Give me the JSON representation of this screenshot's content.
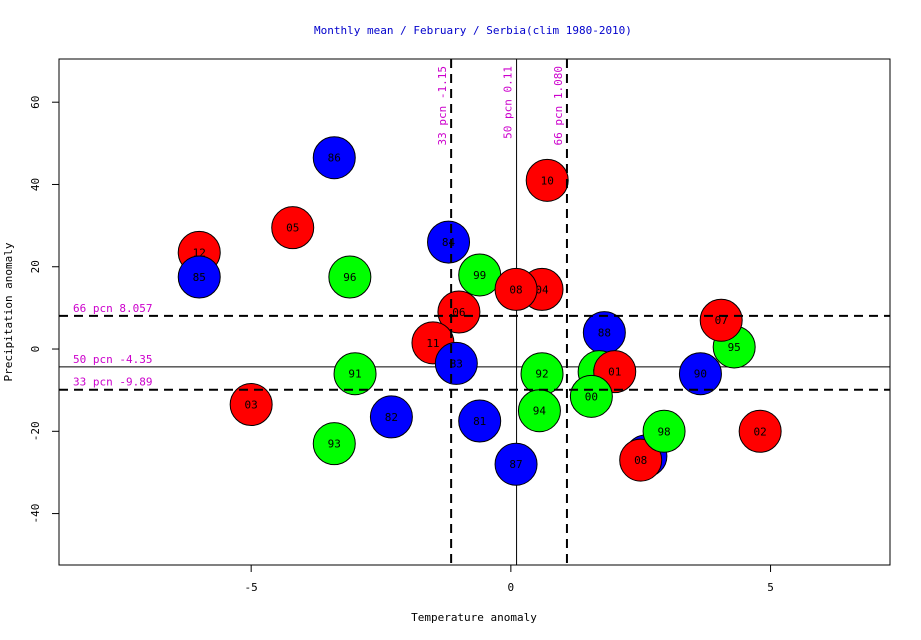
{
  "chart_data": {
    "type": "scatter",
    "title": "Monthly mean / February / Serbia(clim 1980-2010)",
    "xlabel": "Temperature anomaly",
    "ylabel": "Precipitation anomaly",
    "xlim": [
      -8.7,
      7.3
    ],
    "ylim": [
      -52.5,
      70.5
    ],
    "xticks": [
      -5,
      0,
      5
    ],
    "xtick_labels": [
      "-5",
      "0",
      "5"
    ],
    "yticks": [
      -40,
      -20,
      0,
      20,
      40,
      60
    ],
    "ytick_labels": [
      "-40",
      "-20",
      "0",
      "20",
      "40",
      "60"
    ],
    "grid": false,
    "legend": "none",
    "colors": {
      "title": "#0000cc",
      "percentile": "#cc00cc",
      "red": "#ff0000",
      "blue": "#0000ff",
      "green": "#00ff00"
    },
    "vlines": [
      {
        "x": -1.15,
        "label": "33 pcn -1.15",
        "style": "dashed"
      },
      {
        "x": 0.11,
        "label": "50 pcn 0.11",
        "style": "solid"
      },
      {
        "x": 1.08,
        "label": "66 pcn 1.080",
        "style": "dashed"
      }
    ],
    "hlines": [
      {
        "y": 8.057,
        "label": "66 pcn 8.057",
        "style": "dashed"
      },
      {
        "y": -4.35,
        "label": "50 pcn -4.35",
        "style": "solid"
      },
      {
        "y": -9.89,
        "label": "33 pcn -9.89",
        "style": "dashed"
      }
    ],
    "points": [
      {
        "label": "12",
        "x": -6.0,
        "y": 23.5,
        "color": "red"
      },
      {
        "label": "85",
        "x": -6.0,
        "y": 17.5,
        "color": "blue"
      },
      {
        "label": "86",
        "x": -3.4,
        "y": 46.5,
        "color": "blue"
      },
      {
        "label": "05",
        "x": -4.2,
        "y": 29.5,
        "color": "red"
      },
      {
        "label": "96",
        "x": -3.1,
        "y": 17.5,
        "color": "green"
      },
      {
        "label": "91",
        "x": -3.0,
        "y": -6.0,
        "color": "green"
      },
      {
        "label": "03",
        "x": -5.0,
        "y": -13.5,
        "color": "red"
      },
      {
        "label": "82",
        "x": -2.3,
        "y": -16.5,
        "color": "blue"
      },
      {
        "label": "93",
        "x": -3.4,
        "y": -23.0,
        "color": "green"
      },
      {
        "label": "84",
        "x": -1.2,
        "y": 26.0,
        "color": "blue"
      },
      {
        "label": "99",
        "x": -0.6,
        "y": 18.0,
        "color": "green"
      },
      {
        "label": "06",
        "x": -1.0,
        "y": 9.0,
        "color": "red"
      },
      {
        "label": "11",
        "x": -1.5,
        "y": 1.5,
        "color": "red"
      },
      {
        "label": "83",
        "x": -1.05,
        "y": -3.5,
        "color": "blue"
      },
      {
        "label": "81",
        "x": -0.6,
        "y": -17.5,
        "color": "blue"
      },
      {
        "label": "10",
        "x": 0.7,
        "y": 41.0,
        "color": "red"
      },
      {
        "label": "04",
        "x": 0.6,
        "y": 14.5,
        "color": "red"
      },
      {
        "label": "08",
        "x": 0.1,
        "y": 14.5,
        "color": "red"
      },
      {
        "label": "92",
        "x": 0.6,
        "y": -6.0,
        "color": "green"
      },
      {
        "label": "94",
        "x": 0.55,
        "y": -15.0,
        "color": "green"
      },
      {
        "label": "87",
        "x": 0.1,
        "y": -28.0,
        "color": "blue"
      },
      {
        "label": "88",
        "x": 1.8,
        "y": 4.0,
        "color": "blue"
      },
      {
        "label": "97",
        "x": 1.7,
        "y": -5.5,
        "color": "green"
      },
      {
        "label": "01",
        "x": 2.0,
        "y": -5.5,
        "color": "red"
      },
      {
        "label": "00",
        "x": 1.55,
        "y": -11.5,
        "color": "green"
      },
      {
        "label": "89",
        "x": 2.6,
        "y": -26.0,
        "color": "blue"
      },
      {
        "label": "08",
        "x": 2.5,
        "y": -27.0,
        "color": "red"
      },
      {
        "label": "98",
        "x": 2.95,
        "y": -20.0,
        "color": "green"
      },
      {
        "label": "90",
        "x": 3.65,
        "y": -6.0,
        "color": "blue"
      },
      {
        "label": "95",
        "x": 4.3,
        "y": 0.5,
        "color": "green"
      },
      {
        "label": "07",
        "x": 4.05,
        "y": 7.0,
        "color": "red"
      },
      {
        "label": "02",
        "x": 4.8,
        "y": -20.0,
        "color": "red"
      }
    ]
  }
}
